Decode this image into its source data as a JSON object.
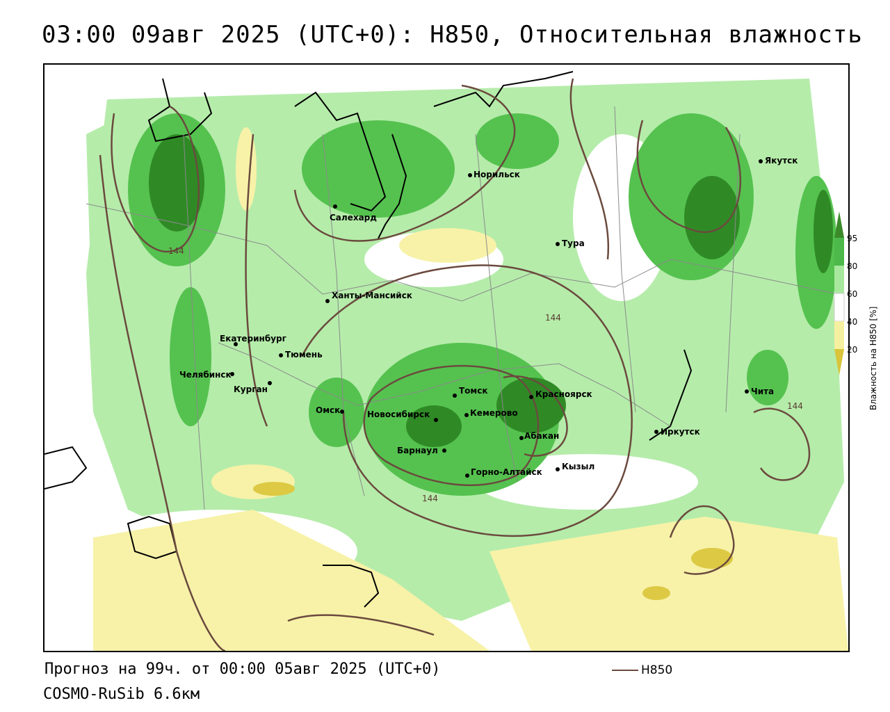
{
  "title": "03:00 09авг 2025 (UTC+0): H850, Относительная влажность",
  "footer": {
    "forecast": "Прогноз на 99ч. от 00:00 05авг 2025 (UTC+0)",
    "model": "COSMO-RuSib 6.6км",
    "h850_key": "H850"
  },
  "legend": {
    "axis_label": "Влажность на H850 [%]",
    "ticks": [
      "95",
      "80",
      "60",
      "40",
      "20"
    ],
    "colors": {
      "c95": "#3b8a2a",
      "c80": "#4cb94a",
      "c60": "#a8e89e",
      "c40": "#ffffff",
      "c20": "#f5f0a0",
      "c0": "#d9c43a"
    }
  },
  "contour_labels": [
    "144",
    "144",
    "144",
    "144"
  ],
  "cities": [
    {
      "name": "Норильск"
    },
    {
      "name": "Салехард"
    },
    {
      "name": "Тура"
    },
    {
      "name": "Якутск"
    },
    {
      "name": "Ханты-Мансийск"
    },
    {
      "name": "Екатеринбург"
    },
    {
      "name": "Тюмень"
    },
    {
      "name": "Челябинск"
    },
    {
      "name": "Курган"
    },
    {
      "name": "Омск"
    },
    {
      "name": "Томск"
    },
    {
      "name": "Красноярск"
    },
    {
      "name": "Новосибирск"
    },
    {
      "name": "Кемерово"
    },
    {
      "name": "Абакан"
    },
    {
      "name": "Барнаул"
    },
    {
      "name": "Иркутск"
    },
    {
      "name": "Чита"
    },
    {
      "name": "Горно-Алтайск"
    },
    {
      "name": "Кызыл"
    }
  ]
}
